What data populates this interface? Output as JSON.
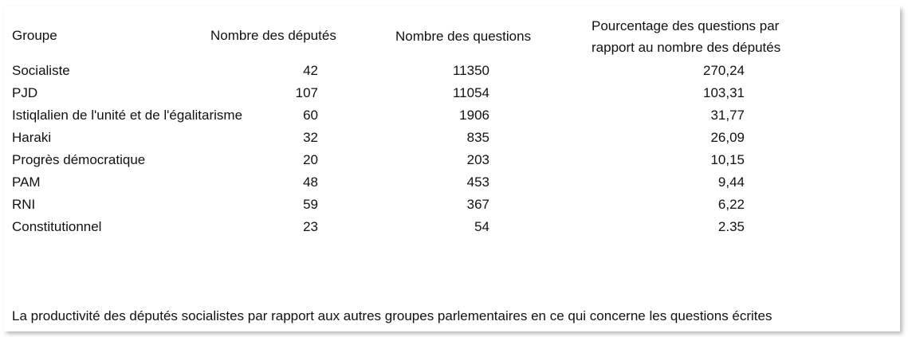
{
  "table": {
    "headers": {
      "group": "Groupe",
      "deputies": "Nombre des députés",
      "questions": "Nombre des questions",
      "percentage_line1": "Pourcentage des questions par",
      "percentage_line2": "rapport au nombre des députés"
    },
    "rows": [
      {
        "group": "Socialiste",
        "deputies": "42",
        "questions": "11350",
        "percentage": "270,24"
      },
      {
        "group": "PJD",
        "deputies": "107",
        "questions": "11054",
        "percentage": "103,31"
      },
      {
        "group": "Istiqlalien de l'unité et de l'égalitarisme",
        "deputies": "60",
        "questions": "1906",
        "percentage": "31,77"
      },
      {
        "group": "Haraki",
        "deputies": "32",
        "questions": "835",
        "percentage": "26,09"
      },
      {
        "group": "Progrès démocratique",
        "deputies": "20",
        "questions": "203",
        "percentage": "10,15"
      },
      {
        "group": "PAM",
        "deputies": "48",
        "questions": "453",
        "percentage": "9,44"
      },
      {
        "group": "RNI",
        "deputies": "59",
        "questions": "367",
        "percentage": "6,22"
      },
      {
        "group": "Constitutionnel",
        "deputies": "23",
        "questions": "54",
        "percentage": "2,35"
      }
    ]
  },
  "caption": "La productivité des députés socialistes par rapport aux autres groupes parlementaires en ce qui concerne les questions écrites"
}
